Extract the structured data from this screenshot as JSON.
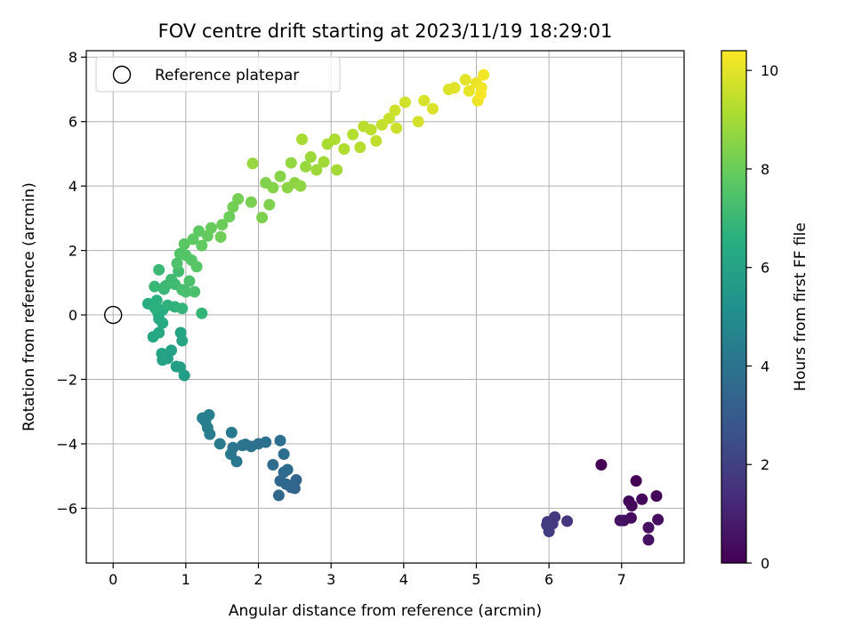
{
  "chart_data": {
    "type": "scatter",
    "title": "FOV centre drift starting at 2023/11/19 18:29:01",
    "xlabel": "Angular distance from reference (arcmin)",
    "ylabel": "Rotation from reference (arcmin)",
    "xlim": [
      -0.37,
      7.86
    ],
    "ylim": [
      -7.7,
      8.2
    ],
    "x_ticks": [
      0,
      1,
      2,
      3,
      4,
      5,
      6,
      7
    ],
    "y_ticks": [
      -6,
      -4,
      -2,
      0,
      2,
      4,
      6,
      8
    ],
    "x_tick_labels": [
      "0",
      "1",
      "2",
      "3",
      "4",
      "5",
      "6",
      "7"
    ],
    "y_tick_labels": [
      "−6",
      "−4",
      "−2",
      "0",
      "2",
      "4",
      "6",
      "8"
    ],
    "grid": true,
    "legend": {
      "entries": [
        "Reference platepar"
      ],
      "placement": "top-left"
    },
    "reference_point": {
      "x": 0,
      "y": 0
    },
    "colorbar": {
      "label": "Hours from first FF file",
      "range": [
        0,
        10.4
      ],
      "ticks": [
        0,
        2,
        4,
        6,
        8,
        10
      ],
      "tick_labels": [
        "0",
        "2",
        "4",
        "6",
        "8",
        "10"
      ],
      "colormap": "viridis",
      "colors": [
        "#440154",
        "#3b528b",
        "#21918c",
        "#5ec962",
        "#fde725"
      ]
    },
    "points": [
      {
        "x": 6.72,
        "y": -4.65,
        "h": 0.0
      },
      {
        "x": 7.2,
        "y": -5.15,
        "h": 0.05
      },
      {
        "x": 7.48,
        "y": -5.62,
        "h": 0.1
      },
      {
        "x": 7.28,
        "y": -5.72,
        "h": 0.15
      },
      {
        "x": 7.1,
        "y": -5.78,
        "h": 0.2
      },
      {
        "x": 7.14,
        "y": -5.92,
        "h": 0.25
      },
      {
        "x": 7.13,
        "y": -6.3,
        "h": 0.3
      },
      {
        "x": 7.03,
        "y": -6.38,
        "h": 0.35
      },
      {
        "x": 7.5,
        "y": -6.35,
        "h": 0.4
      },
      {
        "x": 7.37,
        "y": -6.6,
        "h": 0.45
      },
      {
        "x": 7.37,
        "y": -6.98,
        "h": 0.5
      },
      {
        "x": 6.98,
        "y": -6.38,
        "h": 0.55
      },
      {
        "x": 6.25,
        "y": -6.4,
        "h": 1.6
      },
      {
        "x": 6.08,
        "y": -6.27,
        "h": 1.65
      },
      {
        "x": 5.98,
        "y": -6.42,
        "h": 1.7
      },
      {
        "x": 6.05,
        "y": -6.48,
        "h": 1.75
      },
      {
        "x": 5.97,
        "y": -6.52,
        "h": 1.8
      },
      {
        "x": 6.0,
        "y": -6.72,
        "h": 1.85
      },
      {
        "x": 2.5,
        "y": -5.38,
        "h": 3.3
      },
      {
        "x": 2.45,
        "y": -5.35,
        "h": 3.35
      },
      {
        "x": 2.52,
        "y": -5.12,
        "h": 3.4
      },
      {
        "x": 2.3,
        "y": -5.15,
        "h": 3.45
      },
      {
        "x": 2.28,
        "y": -5.6,
        "h": 3.5
      },
      {
        "x": 2.38,
        "y": -5.25,
        "h": 3.55
      },
      {
        "x": 2.35,
        "y": -4.88,
        "h": 3.6
      },
      {
        "x": 2.4,
        "y": -4.8,
        "h": 3.65
      },
      {
        "x": 2.2,
        "y": -4.65,
        "h": 3.7
      },
      {
        "x": 2.35,
        "y": -4.32,
        "h": 3.75
      },
      {
        "x": 2.3,
        "y": -3.9,
        "h": 3.8
      },
      {
        "x": 2.1,
        "y": -3.95,
        "h": 3.85
      },
      {
        "x": 2.0,
        "y": -4.0,
        "h": 3.9
      },
      {
        "x": 1.9,
        "y": -4.08,
        "h": 3.95
      },
      {
        "x": 1.82,
        "y": -4.02,
        "h": 4.0
      },
      {
        "x": 1.78,
        "y": -4.05,
        "h": 4.05
      },
      {
        "x": 1.65,
        "y": -4.12,
        "h": 4.1
      },
      {
        "x": 1.62,
        "y": -4.32,
        "h": 4.15
      },
      {
        "x": 1.7,
        "y": -4.55,
        "h": 4.2
      },
      {
        "x": 1.63,
        "y": -3.65,
        "h": 4.25
      },
      {
        "x": 1.47,
        "y": -4.0,
        "h": 4.3
      },
      {
        "x": 1.33,
        "y": -3.7,
        "h": 4.35
      },
      {
        "x": 1.3,
        "y": -3.5,
        "h": 4.4
      },
      {
        "x": 1.27,
        "y": -3.3,
        "h": 4.45
      },
      {
        "x": 1.23,
        "y": -3.2,
        "h": 4.5
      },
      {
        "x": 1.32,
        "y": -3.1,
        "h": 4.55
      },
      {
        "x": 0.98,
        "y": -1.88,
        "h": 5.75
      },
      {
        "x": 0.92,
        "y": -1.62,
        "h": 5.8
      },
      {
        "x": 0.87,
        "y": -1.6,
        "h": 5.85
      },
      {
        "x": 0.75,
        "y": -1.35,
        "h": 5.9
      },
      {
        "x": 0.68,
        "y": -1.4,
        "h": 5.95
      },
      {
        "x": 0.8,
        "y": -1.1,
        "h": 6.0
      },
      {
        "x": 0.67,
        "y": -1.2,
        "h": 6.05
      },
      {
        "x": 0.95,
        "y": -0.8,
        "h": 6.1
      },
      {
        "x": 0.93,
        "y": -0.55,
        "h": 6.15
      },
      {
        "x": 0.55,
        "y": -0.68,
        "h": 6.2
      },
      {
        "x": 0.63,
        "y": -0.55,
        "h": 6.25
      },
      {
        "x": 0.68,
        "y": -0.25,
        "h": 6.3
      },
      {
        "x": 0.63,
        "y": -0.12,
        "h": 6.35
      },
      {
        "x": 0.62,
        "y": 0.05,
        "h": 6.4
      },
      {
        "x": 0.68,
        "y": 0.15,
        "h": 6.45
      },
      {
        "x": 0.48,
        "y": 0.35,
        "h": 6.5
      },
      {
        "x": 0.55,
        "y": 0.3,
        "h": 6.55
      },
      {
        "x": 0.6,
        "y": 0.45,
        "h": 6.6
      },
      {
        "x": 0.58,
        "y": 0.2,
        "h": 6.65
      },
      {
        "x": 0.75,
        "y": 0.3,
        "h": 6.7
      },
      {
        "x": 0.85,
        "y": 0.25,
        "h": 6.75
      },
      {
        "x": 0.95,
        "y": 0.2,
        "h": 6.8
      },
      {
        "x": 1.22,
        "y": 0.05,
        "h": 6.85
      },
      {
        "x": 0.7,
        "y": 0.8,
        "h": 6.9
      },
      {
        "x": 0.57,
        "y": 0.88,
        "h": 6.95
      },
      {
        "x": 0.63,
        "y": 1.4,
        "h": 7.0
      },
      {
        "x": 0.72,
        "y": 0.9,
        "h": 7.05
      },
      {
        "x": 0.8,
        "y": 1.1,
        "h": 7.1
      },
      {
        "x": 0.85,
        "y": 0.95,
        "h": 7.15
      },
      {
        "x": 0.9,
        "y": 1.35,
        "h": 7.2
      },
      {
        "x": 0.95,
        "y": 0.78,
        "h": 7.25
      },
      {
        "x": 1.0,
        "y": 0.72,
        "h": 7.3
      },
      {
        "x": 1.12,
        "y": 0.72,
        "h": 7.35
      },
      {
        "x": 1.05,
        "y": 1.05,
        "h": 7.4
      },
      {
        "x": 0.88,
        "y": 1.6,
        "h": 7.45
      },
      {
        "x": 0.92,
        "y": 1.9,
        "h": 7.5
      },
      {
        "x": 1.0,
        "y": 1.85,
        "h": 7.55
      },
      {
        "x": 1.08,
        "y": 1.7,
        "h": 7.6
      },
      {
        "x": 1.15,
        "y": 1.5,
        "h": 7.65
      },
      {
        "x": 0.98,
        "y": 2.2,
        "h": 7.7
      },
      {
        "x": 1.1,
        "y": 2.35,
        "h": 7.75
      },
      {
        "x": 1.18,
        "y": 2.6,
        "h": 7.8
      },
      {
        "x": 1.22,
        "y": 2.15,
        "h": 7.85
      },
      {
        "x": 1.3,
        "y": 2.45,
        "h": 7.9
      },
      {
        "x": 1.35,
        "y": 2.7,
        "h": 7.95
      },
      {
        "x": 1.5,
        "y": 2.8,
        "h": 8.0
      },
      {
        "x": 1.6,
        "y": 3.05,
        "h": 8.05
      },
      {
        "x": 1.48,
        "y": 2.42,
        "h": 8.1
      },
      {
        "x": 1.65,
        "y": 3.35,
        "h": 8.15
      },
      {
        "x": 1.72,
        "y": 3.6,
        "h": 8.2
      },
      {
        "x": 1.9,
        "y": 3.5,
        "h": 8.25
      },
      {
        "x": 2.05,
        "y": 3.02,
        "h": 8.3
      },
      {
        "x": 2.15,
        "y": 3.42,
        "h": 8.35
      },
      {
        "x": 2.1,
        "y": 4.1,
        "h": 8.4
      },
      {
        "x": 2.2,
        "y": 3.95,
        "h": 8.45
      },
      {
        "x": 2.3,
        "y": 4.3,
        "h": 8.5
      },
      {
        "x": 2.4,
        "y": 3.95,
        "h": 8.55
      },
      {
        "x": 2.5,
        "y": 4.1,
        "h": 8.6
      },
      {
        "x": 2.58,
        "y": 4.0,
        "h": 8.65
      },
      {
        "x": 2.45,
        "y": 4.72,
        "h": 8.7
      },
      {
        "x": 1.92,
        "y": 4.7,
        "h": 8.75
      },
      {
        "x": 2.65,
        "y": 4.6,
        "h": 8.8
      },
      {
        "x": 2.72,
        "y": 4.9,
        "h": 8.85
      },
      {
        "x": 2.8,
        "y": 4.5,
        "h": 8.9
      },
      {
        "x": 2.9,
        "y": 4.75,
        "h": 8.95
      },
      {
        "x": 3.08,
        "y": 4.5,
        "h": 9.0
      },
      {
        "x": 2.6,
        "y": 5.45,
        "h": 9.05
      },
      {
        "x": 2.95,
        "y": 5.3,
        "h": 9.1
      },
      {
        "x": 3.05,
        "y": 5.45,
        "h": 9.15
      },
      {
        "x": 3.18,
        "y": 5.15,
        "h": 9.2
      },
      {
        "x": 3.3,
        "y": 5.6,
        "h": 9.25
      },
      {
        "x": 3.4,
        "y": 5.2,
        "h": 9.3
      },
      {
        "x": 3.45,
        "y": 5.85,
        "h": 9.35
      },
      {
        "x": 3.55,
        "y": 5.75,
        "h": 9.4
      },
      {
        "x": 3.62,
        "y": 5.4,
        "h": 9.45
      },
      {
        "x": 3.7,
        "y": 5.9,
        "h": 9.5
      },
      {
        "x": 3.8,
        "y": 6.1,
        "h": 9.55
      },
      {
        "x": 3.9,
        "y": 5.8,
        "h": 9.6
      },
      {
        "x": 3.88,
        "y": 6.35,
        "h": 9.65
      },
      {
        "x": 4.02,
        "y": 6.6,
        "h": 9.7
      },
      {
        "x": 4.2,
        "y": 6.0,
        "h": 9.75
      },
      {
        "x": 4.28,
        "y": 6.65,
        "h": 9.8
      },
      {
        "x": 4.4,
        "y": 6.4,
        "h": 9.85
      },
      {
        "x": 4.62,
        "y": 7.0,
        "h": 9.9
      },
      {
        "x": 4.7,
        "y": 7.05,
        "h": 9.95
      },
      {
        "x": 4.85,
        "y": 7.3,
        "h": 10.0
      },
      {
        "x": 4.9,
        "y": 6.95,
        "h": 10.05
      },
      {
        "x": 5.0,
        "y": 7.2,
        "h": 10.1
      },
      {
        "x": 5.02,
        "y": 6.65,
        "h": 10.15
      },
      {
        "x": 5.07,
        "y": 7.05,
        "h": 10.2
      },
      {
        "x": 5.1,
        "y": 7.45,
        "h": 10.25
      },
      {
        "x": 5.06,
        "y": 6.85,
        "h": 10.3
      }
    ]
  }
}
